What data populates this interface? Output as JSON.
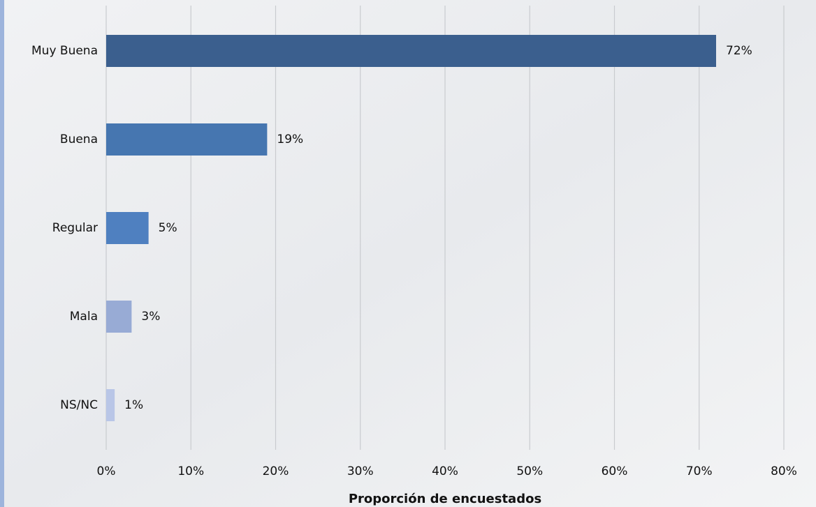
{
  "chart_data": {
    "type": "bar",
    "orientation": "horizontal",
    "x_label": "Proporción de encuestados",
    "categories": [
      "Muy Buena",
      "Buena",
      "Regular",
      "Mala",
      "NS/NC"
    ],
    "values": [
      72,
      19,
      5,
      3,
      1
    ],
    "value_labels": [
      "72%",
      "19%",
      "5%",
      "3%",
      "1%"
    ],
    "colors": [
      "#3b5f8e",
      "#4676b0",
      "#4f80c0",
      "#98abd5",
      "#b9c6e7"
    ],
    "xlim": [
      0,
      80
    ],
    "xticks": [
      {
        "value": 0,
        "label": "0%"
      },
      {
        "value": 10,
        "label": "10%"
      },
      {
        "value": 20,
        "label": "20%"
      },
      {
        "value": 30,
        "label": "30%"
      },
      {
        "value": 40,
        "label": "40%"
      },
      {
        "value": 50,
        "label": "50%"
      },
      {
        "value": 60,
        "label": "60%"
      },
      {
        "value": 70,
        "label": "70%"
      },
      {
        "value": 80,
        "label": "80%"
      }
    ],
    "grid": true
  }
}
